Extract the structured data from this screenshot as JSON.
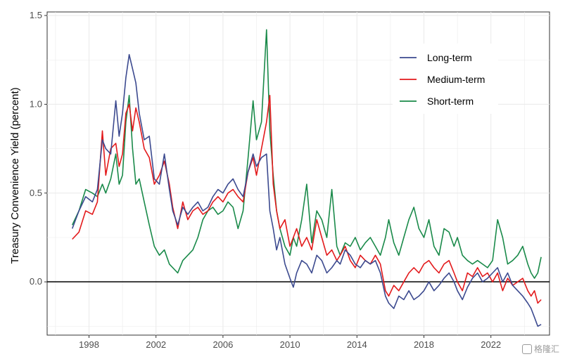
{
  "chart_data": {
    "type": "line",
    "xlabel": "",
    "ylabel": "Treasury Convenience Yield (percent)",
    "xlim": [
      1995.5,
      2025.5
    ],
    "ylim": [
      -0.3,
      1.52
    ],
    "x_ticks": [
      1998,
      2002,
      2006,
      2010,
      2014,
      2018,
      2022
    ],
    "x_tick_labels": [
      "1998",
      "2002",
      "2006",
      "2010",
      "2014",
      "2018",
      "2022"
    ],
    "y_ticks": [
      0.0,
      0.5,
      1.0,
      1.5
    ],
    "y_tick_labels": [
      "0.0",
      "0.5",
      "1.0",
      "1.5"
    ],
    "grid": true,
    "reference_line": 0,
    "legend_position": "top-right",
    "series": [
      {
        "name": "Long-term",
        "color": "#3c4a8f",
        "x": [
          1997.0,
          1997.4,
          1997.8,
          1998.2,
          1998.5,
          1998.8,
          1999.0,
          1999.3,
          1999.6,
          1999.8,
          2000.0,
          2000.2,
          2000.4,
          2000.6,
          2000.8,
          2001.0,
          2001.3,
          2001.6,
          2001.9,
          2002.2,
          2002.5,
          2002.8,
          2003.0,
          2003.3,
          2003.6,
          2003.9,
          2004.2,
          2004.5,
          2004.8,
          2005.1,
          2005.4,
          2005.7,
          2006.0,
          2006.3,
          2006.6,
          2006.9,
          2007.2,
          2007.5,
          2007.8,
          2008.0,
          2008.3,
          2008.6,
          2008.8,
          2009.0,
          2009.2,
          2009.4,
          2009.7,
          2010.0,
          2010.2,
          2010.4,
          2010.7,
          2011.0,
          2011.3,
          2011.6,
          2011.9,
          2012.2,
          2012.5,
          2012.8,
          2013.0,
          2013.3,
          2013.6,
          2013.9,
          2014.2,
          2014.5,
          2014.8,
          2015.1,
          2015.4,
          2015.7,
          2015.9,
          2016.2,
          2016.5,
          2016.8,
          2017.1,
          2017.4,
          2017.7,
          2018.0,
          2018.3,
          2018.6,
          2018.9,
          2019.2,
          2019.5,
          2019.8,
          2020.0,
          2020.3,
          2020.6,
          2020.9,
          2021.2,
          2021.5,
          2021.8,
          2022.1,
          2022.4,
          2022.7,
          2023.0,
          2023.3,
          2023.6,
          2023.9,
          2024.2,
          2024.4,
          2024.6,
          2024.8,
          2025.0
        ],
        "values": [
          0.3,
          0.4,
          0.48,
          0.45,
          0.52,
          0.8,
          0.75,
          0.72,
          1.02,
          0.82,
          0.95,
          1.15,
          1.28,
          1.2,
          1.12,
          0.95,
          0.8,
          0.82,
          0.58,
          0.55,
          0.72,
          0.52,
          0.4,
          0.32,
          0.42,
          0.38,
          0.42,
          0.45,
          0.4,
          0.42,
          0.48,
          0.52,
          0.5,
          0.55,
          0.58,
          0.52,
          0.48,
          0.62,
          0.72,
          0.65,
          0.7,
          0.72,
          0.4,
          0.3,
          0.18,
          0.25,
          0.1,
          0.02,
          -0.03,
          0.05,
          0.12,
          0.1,
          0.05,
          0.15,
          0.12,
          0.05,
          0.08,
          0.12,
          0.1,
          0.18,
          0.15,
          0.1,
          0.08,
          0.12,
          0.1,
          0.12,
          0.05,
          -0.08,
          -0.12,
          -0.15,
          -0.08,
          -0.1,
          -0.05,
          -0.1,
          -0.08,
          -0.05,
          0.0,
          -0.05,
          -0.02,
          0.02,
          0.05,
          0.0,
          -0.05,
          -0.1,
          -0.03,
          0.02,
          0.05,
          0.0,
          0.02,
          0.05,
          0.08,
          0.0,
          0.05,
          -0.02,
          -0.05,
          -0.08,
          -0.12,
          -0.15,
          -0.2,
          -0.25,
          -0.24
        ]
      },
      {
        "name": "Medium-term",
        "color": "#e31a1c",
        "x": [
          1997.0,
          1997.4,
          1997.8,
          1998.2,
          1998.5,
          1998.8,
          1999.0,
          1999.3,
          1999.6,
          1999.8,
          2000.0,
          2000.2,
          2000.4,
          2000.6,
          2000.8,
          2001.0,
          2001.3,
          2001.6,
          2001.9,
          2002.2,
          2002.5,
          2002.8,
          2003.0,
          2003.3,
          2003.6,
          2003.9,
          2004.2,
          2004.5,
          2004.8,
          2005.1,
          2005.4,
          2005.7,
          2006.0,
          2006.3,
          2006.6,
          2006.9,
          2007.2,
          2007.5,
          2007.8,
          2008.0,
          2008.3,
          2008.6,
          2008.8,
          2009.0,
          2009.2,
          2009.4,
          2009.7,
          2010.0,
          2010.2,
          2010.4,
          2010.7,
          2011.0,
          2011.3,
          2011.6,
          2011.9,
          2012.2,
          2012.5,
          2012.8,
          2013.0,
          2013.3,
          2013.6,
          2013.9,
          2014.2,
          2014.5,
          2014.8,
          2015.1,
          2015.4,
          2015.7,
          2015.9,
          2016.2,
          2016.5,
          2016.8,
          2017.1,
          2017.4,
          2017.7,
          2018.0,
          2018.3,
          2018.6,
          2018.9,
          2019.2,
          2019.5,
          2019.8,
          2020.0,
          2020.3,
          2020.6,
          2020.9,
          2021.2,
          2021.5,
          2021.8,
          2022.1,
          2022.4,
          2022.7,
          2023.0,
          2023.3,
          2023.6,
          2023.9,
          2024.2,
          2024.4,
          2024.6,
          2024.8,
          2025.0
        ],
        "values": [
          0.24,
          0.28,
          0.4,
          0.38,
          0.45,
          0.85,
          0.6,
          0.75,
          0.78,
          0.65,
          0.72,
          0.95,
          1.0,
          0.85,
          0.98,
          0.9,
          0.75,
          0.7,
          0.55,
          0.6,
          0.68,
          0.55,
          0.42,
          0.3,
          0.45,
          0.35,
          0.4,
          0.42,
          0.38,
          0.4,
          0.45,
          0.48,
          0.45,
          0.5,
          0.52,
          0.48,
          0.45,
          0.62,
          0.7,
          0.6,
          0.75,
          0.9,
          1.05,
          0.55,
          0.4,
          0.3,
          0.35,
          0.2,
          0.25,
          0.3,
          0.2,
          0.25,
          0.18,
          0.35,
          0.25,
          0.15,
          0.18,
          0.12,
          0.15,
          0.2,
          0.12,
          0.08,
          0.15,
          0.12,
          0.1,
          0.15,
          0.1,
          -0.05,
          -0.08,
          -0.02,
          -0.05,
          0.0,
          0.05,
          0.08,
          0.05,
          0.1,
          0.12,
          0.08,
          0.05,
          0.1,
          0.12,
          0.05,
          0.0,
          -0.05,
          0.05,
          0.03,
          0.08,
          0.03,
          0.05,
          0.0,
          0.05,
          -0.05,
          0.02,
          -0.02,
          0.0,
          0.02,
          -0.05,
          -0.08,
          -0.05,
          -0.12,
          -0.1
        ]
      },
      {
        "name": "Short-term",
        "color": "#1a8a4a",
        "x": [
          1997.0,
          1997.4,
          1997.8,
          1998.2,
          1998.5,
          1998.8,
          1999.0,
          1999.3,
          1999.6,
          1999.8,
          2000.0,
          2000.2,
          2000.4,
          2000.6,
          2000.8,
          2001.0,
          2001.3,
          2001.6,
          2001.9,
          2002.2,
          2002.5,
          2002.8,
          2003.0,
          2003.3,
          2003.6,
          2003.9,
          2004.2,
          2004.5,
          2004.8,
          2005.1,
          2005.4,
          2005.7,
          2006.0,
          2006.3,
          2006.6,
          2006.9,
          2007.2,
          2007.5,
          2007.8,
          2008.0,
          2008.3,
          2008.6,
          2008.8,
          2009.0,
          2009.2,
          2009.4,
          2009.7,
          2010.0,
          2010.2,
          2010.4,
          2010.7,
          2011.0,
          2011.3,
          2011.6,
          2011.9,
          2012.2,
          2012.5,
          2012.8,
          2013.0,
          2013.3,
          2013.6,
          2013.9,
          2014.2,
          2014.5,
          2014.8,
          2015.1,
          2015.4,
          2015.7,
          2015.9,
          2016.2,
          2016.5,
          2016.8,
          2017.1,
          2017.4,
          2017.7,
          2018.0,
          2018.3,
          2018.6,
          2018.9,
          2019.2,
          2019.5,
          2019.8,
          2020.0,
          2020.3,
          2020.6,
          2020.9,
          2021.2,
          2021.5,
          2021.8,
          2022.1,
          2022.4,
          2022.7,
          2023.0,
          2023.3,
          2023.6,
          2023.9,
          2024.2,
          2024.4,
          2024.6,
          2024.8,
          2025.0
        ],
        "values": [
          0.32,
          0.4,
          0.52,
          0.5,
          0.48,
          0.55,
          0.5,
          0.58,
          0.72,
          0.55,
          0.6,
          0.9,
          1.05,
          0.75,
          0.55,
          0.58,
          0.45,
          0.32,
          0.2,
          0.15,
          0.18,
          0.1,
          0.08,
          0.05,
          0.12,
          0.15,
          0.18,
          0.25,
          0.35,
          0.4,
          0.42,
          0.38,
          0.4,
          0.45,
          0.42,
          0.3,
          0.4,
          0.7,
          1.02,
          0.8,
          0.9,
          1.42,
          0.85,
          0.6,
          0.4,
          0.3,
          0.2,
          0.15,
          0.25,
          0.2,
          0.35,
          0.55,
          0.22,
          0.4,
          0.35,
          0.25,
          0.52,
          0.2,
          0.15,
          0.22,
          0.2,
          0.25,
          0.18,
          0.22,
          0.25,
          0.2,
          0.15,
          0.25,
          0.35,
          0.22,
          0.15,
          0.25,
          0.35,
          0.42,
          0.3,
          0.25,
          0.35,
          0.2,
          0.15,
          0.3,
          0.28,
          0.2,
          0.25,
          0.15,
          0.12,
          0.1,
          0.12,
          0.1,
          0.08,
          0.12,
          0.35,
          0.25,
          0.1,
          0.12,
          0.15,
          0.2,
          0.1,
          0.05,
          0.02,
          0.05,
          0.14
        ]
      }
    ]
  },
  "watermark": {
    "text": "格隆汇",
    "icon": "watermark-logo-icon"
  }
}
